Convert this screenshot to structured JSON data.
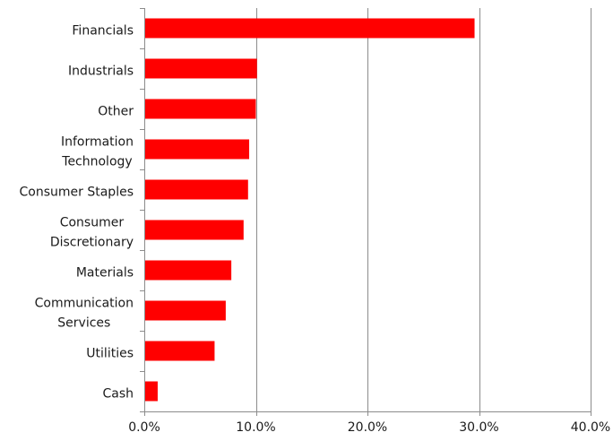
{
  "chart_data": {
    "type": "bar",
    "orientation": "horizontal",
    "categories": [
      [
        "Financials"
      ],
      [
        "Industrials"
      ],
      [
        "Other"
      ],
      [
        "Information",
        "Technology"
      ],
      [
        "Consumer Staples"
      ],
      [
        "Consumer",
        "Discretionary"
      ],
      [
        "Materials"
      ],
      [
        "Communication",
        "Services"
      ],
      [
        "Utilities"
      ],
      [
        "Cash"
      ]
    ],
    "values": [
      29.6,
      10.1,
      10.0,
      9.4,
      9.3,
      8.9,
      7.8,
      7.3,
      6.3,
      1.2
    ],
    "xlim": [
      0,
      40
    ],
    "xticks": [
      0,
      10,
      20,
      30,
      40
    ],
    "xtick_labels": [
      "0.0%",
      "10.0%",
      "20.0%",
      "30.0%",
      "40.0%"
    ],
    "grid": "vertical",
    "bar_color": "#ff0000",
    "title": "",
    "xlabel": "",
    "ylabel": ""
  }
}
